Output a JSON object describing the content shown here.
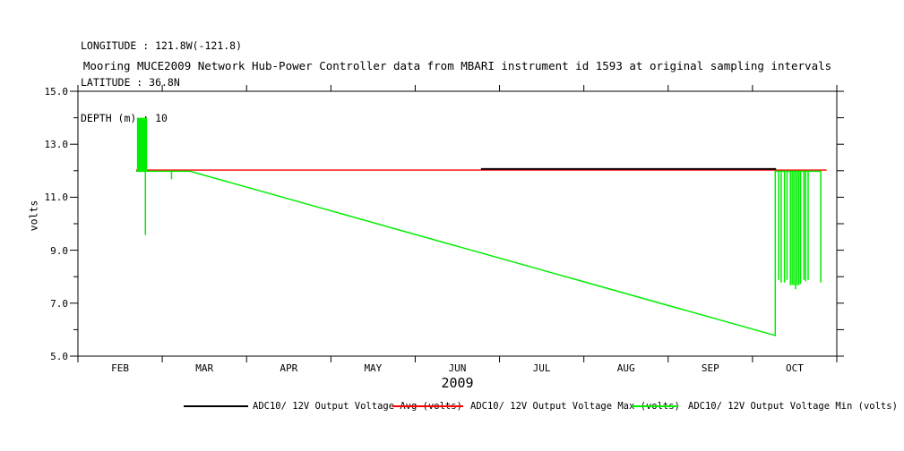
{
  "header": {
    "lines": [
      "LONGITUDE : 121.8W(-121.8)",
      "LATITUDE : 36.8N",
      "DEPTH (m) : 10"
    ]
  },
  "chart_data": {
    "type": "line",
    "title": "Mooring MUCE2009 Network Hub-Power Controller data from MBARI instrument id 1593 at original sampling intervals",
    "ylabel": "volts",
    "ylim": [
      5.0,
      15.0
    ],
    "yticks_major": [
      {
        "v": 15.0,
        "label": "15.0"
      },
      {
        "v": 13.0,
        "label": "13.0"
      },
      {
        "v": 11.0,
        "label": "11.0"
      },
      {
        "v": 9.0,
        "label": "9.0"
      },
      {
        "v": 7.0,
        "label": "7.0"
      },
      {
        "v": 5.0,
        "label": "5.0"
      }
    ],
    "yticks_minor": [
      14.0,
      12.0,
      10.0,
      8.0,
      6.0
    ],
    "x_axis": {
      "unit": "months since Feb 1 2009 (axis spans Feb 1 = 0 to Nov 1 = 9)",
      "categories": [
        "FEB",
        "MAR",
        "APR",
        "MAY",
        "JUN",
        "JUL",
        "AUG",
        "SEP",
        "OCT"
      ],
      "year": "2009"
    },
    "grid": "off",
    "legend_position": "bottom",
    "series": [
      {
        "name": "ADC10/ 12V Output Voltage Avg (volts)",
        "color": "#000000",
        "points": [
          [
            4.78,
            12.0
          ],
          [
            8.28,
            12.0
          ]
        ]
      },
      {
        "name": "ADC10/ 12V Output Voltage Max (volts)",
        "color": "#ff0000",
        "points": [
          [
            0.69,
            12.0
          ],
          [
            8.88,
            12.0
          ]
        ]
      },
      {
        "name": "ADC10/ 12V Output Voltage Min (volts)",
        "color": "#00ee00",
        "points": [
          [
            0.69,
            12.0
          ],
          [
            0.8,
            12.0
          ],
          [
            0.8,
            9.6
          ],
          [
            0.8,
            12.0
          ],
          [
            1.11,
            12.0
          ],
          [
            1.11,
            11.7
          ],
          [
            1.11,
            12.0
          ],
          [
            1.33,
            12.0
          ],
          [
            8.27,
            5.8
          ],
          [
            8.27,
            12.0
          ],
          [
            8.31,
            12.0
          ],
          [
            8.31,
            7.9
          ],
          [
            8.31,
            12.0
          ],
          [
            8.34,
            12.0
          ],
          [
            8.34,
            7.8
          ],
          [
            8.34,
            12.0
          ],
          [
            8.38,
            12.0
          ],
          [
            8.38,
            7.8
          ],
          [
            8.38,
            12.0
          ],
          [
            8.41,
            12.0
          ],
          [
            8.41,
            7.9
          ],
          [
            8.41,
            12.0
          ],
          [
            8.45,
            12.0
          ],
          [
            8.45,
            7.7
          ],
          [
            8.45,
            12.0
          ],
          [
            8.47,
            12.0
          ],
          [
            8.47,
            7.7
          ],
          [
            8.47,
            12.0
          ],
          [
            8.49,
            12.0
          ],
          [
            8.49,
            7.7
          ],
          [
            8.49,
            12.0
          ],
          [
            8.51,
            12.0
          ],
          [
            8.51,
            7.55
          ],
          [
            8.51,
            12.0
          ],
          [
            8.53,
            12.0
          ],
          [
            8.53,
            7.7
          ],
          [
            8.53,
            12.0
          ],
          [
            8.55,
            12.0
          ],
          [
            8.55,
            7.7
          ],
          [
            8.55,
            12.0
          ],
          [
            8.57,
            12.0
          ],
          [
            8.57,
            7.75
          ],
          [
            8.57,
            12.0
          ],
          [
            8.61,
            12.0
          ],
          [
            8.61,
            7.9
          ],
          [
            8.61,
            12.0
          ],
          [
            8.63,
            12.0
          ],
          [
            8.63,
            7.85
          ],
          [
            8.63,
            12.0
          ],
          [
            8.66,
            12.0
          ],
          [
            8.66,
            7.9
          ],
          [
            8.66,
            12.0
          ],
          [
            8.81,
            12.0
          ],
          [
            8.81,
            7.8
          ]
        ],
        "burst_block": {
          "x0": 0.7,
          "x1": 0.82,
          "y0": 12.0,
          "y1": 14.0
        }
      }
    ]
  }
}
